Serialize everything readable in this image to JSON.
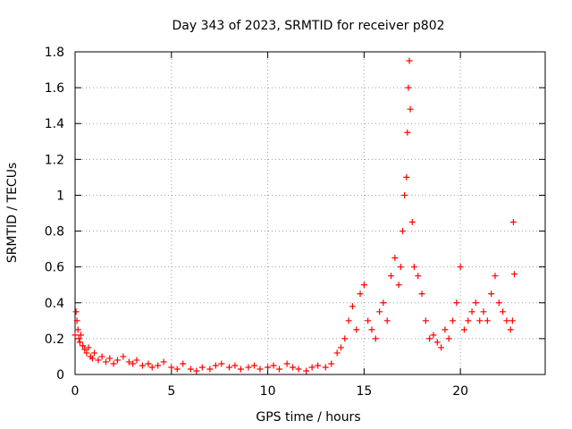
{
  "chart_data": {
    "type": "scatter",
    "title": "Day 343 of 2023, SRMTID for receiver p802",
    "xlabel": "GPS time / hours",
    "ylabel": "SRMTID / TECUs",
    "xlim": [
      0,
      24.4
    ],
    "ylim": [
      0,
      1.8
    ],
    "x_ticks": [
      0,
      5,
      10,
      15,
      20
    ],
    "x_tick_labels": [
      "0",
      "5",
      "10",
      "15",
      "20"
    ],
    "y_ticks": [
      0,
      0.2,
      0.4,
      0.6,
      0.8,
      1.0,
      1.2,
      1.4,
      1.6,
      1.8
    ],
    "y_tick_labels": [
      "0",
      "0.2",
      "0.4",
      "0.6",
      "0.8",
      "1",
      "1.2",
      "1.4",
      "1.6",
      "1.8"
    ],
    "grid": true,
    "marker": "plus",
    "series": [
      {
        "name": "SRMTID",
        "color": "#ff0000",
        "x": [
          0.0,
          0.05,
          0.1,
          0.15,
          0.2,
          0.25,
          0.3,
          0.4,
          0.5,
          0.6,
          0.7,
          0.8,
          0.9,
          1.0,
          1.2,
          1.4,
          1.6,
          1.8,
          2.0,
          2.2,
          2.5,
          2.8,
          3.0,
          3.2,
          3.5,
          3.8,
          4.0,
          4.3,
          4.6,
          5.0,
          5.3,
          5.6,
          6.0,
          6.3,
          6.6,
          7.0,
          7.3,
          7.6,
          8.0,
          8.3,
          8.6,
          9.0,
          9.3,
          9.6,
          10.0,
          10.3,
          10.6,
          11.0,
          11.3,
          11.6,
          12.0,
          12.3,
          12.6,
          13.0,
          13.3,
          13.6,
          13.8,
          14.0,
          14.2,
          14.4,
          14.6,
          14.8,
          15.0,
          15.2,
          15.4,
          15.6,
          15.8,
          16.0,
          16.2,
          16.4,
          16.6,
          16.8,
          16.9,
          17.0,
          17.1,
          17.2,
          17.25,
          17.3,
          17.35,
          17.4,
          17.5,
          17.6,
          17.8,
          18.0,
          18.2,
          18.4,
          18.6,
          18.8,
          19.0,
          19.2,
          19.4,
          19.6,
          19.8,
          20.0,
          20.2,
          20.4,
          20.6,
          20.8,
          21.0,
          21.2,
          21.4,
          21.6,
          21.8,
          22.0,
          22.2,
          22.4,
          22.6,
          22.7,
          22.75,
          22.8
        ],
        "y": [
          0.22,
          0.35,
          0.3,
          0.25,
          0.2,
          0.18,
          0.22,
          0.16,
          0.14,
          0.12,
          0.15,
          0.1,
          0.09,
          0.12,
          0.08,
          0.1,
          0.07,
          0.09,
          0.06,
          0.08,
          0.1,
          0.07,
          0.06,
          0.08,
          0.05,
          0.06,
          0.04,
          0.05,
          0.07,
          0.04,
          0.03,
          0.06,
          0.03,
          0.02,
          0.04,
          0.03,
          0.05,
          0.06,
          0.04,
          0.05,
          0.03,
          0.04,
          0.05,
          0.03,
          0.04,
          0.05,
          0.03,
          0.06,
          0.04,
          0.03,
          0.02,
          0.04,
          0.05,
          0.04,
          0.06,
          0.12,
          0.15,
          0.2,
          0.3,
          0.38,
          0.25,
          0.45,
          0.5,
          0.3,
          0.25,
          0.2,
          0.35,
          0.4,
          0.3,
          0.55,
          0.65,
          0.5,
          0.6,
          0.8,
          1.0,
          1.1,
          1.35,
          1.6,
          1.75,
          1.48,
          0.85,
          0.6,
          0.55,
          0.45,
          0.3,
          0.2,
          0.22,
          0.18,
          0.15,
          0.25,
          0.2,
          0.3,
          0.4,
          0.6,
          0.25,
          0.3,
          0.35,
          0.4,
          0.3,
          0.35,
          0.3,
          0.45,
          0.55,
          0.4,
          0.35,
          0.3,
          0.25,
          0.3,
          0.85,
          0.56
        ]
      }
    ]
  }
}
